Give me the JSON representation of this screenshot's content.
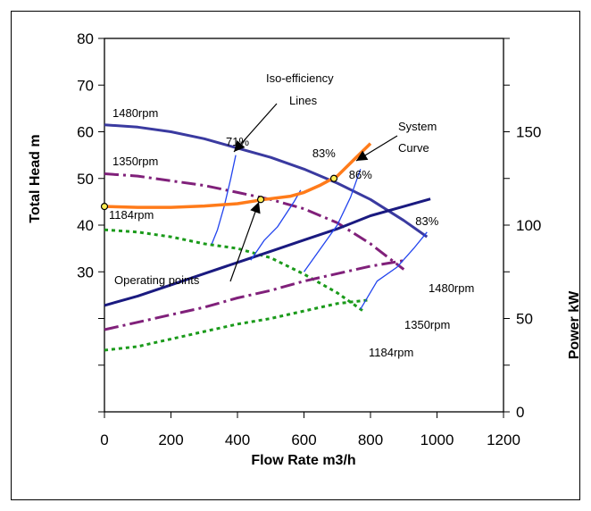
{
  "chart_data": {
    "type": "line",
    "title": "",
    "xlabel": "Flow Rate m3/h",
    "ylabel": "Total Head m",
    "y2label": "Power kW",
    "xlim": [
      0,
      1200
    ],
    "ylim": [
      0,
      80
    ],
    "y2lim": [
      0,
      200
    ],
    "x_ticks": [
      0,
      200,
      400,
      600,
      800,
      1000,
      1200
    ],
    "y_ticks": [
      30,
      40,
      50,
      60,
      70,
      80
    ],
    "y2_ticks": [
      0,
      50,
      100,
      150
    ],
    "grid": false,
    "legend": "none",
    "head_curves": [
      {
        "label": "1480rpm",
        "color": "#3a3aa0",
        "dash": "solid",
        "x": [
          0,
          100,
          200,
          300,
          400,
          500,
          600,
          700,
          800,
          900,
          970
        ],
        "y": [
          61.5,
          61,
          60,
          58.5,
          56.5,
          54.5,
          52,
          49,
          45.5,
          41,
          37.5
        ]
      },
      {
        "label": "1350rpm",
        "color": "#80207a",
        "dash": "dashdot",
        "x": [
          0,
          100,
          200,
          300,
          400,
          500,
          600,
          700,
          800,
          900
        ],
        "y": [
          51,
          50.5,
          49.5,
          48.5,
          47,
          45.5,
          43.5,
          40.5,
          36,
          30.5
        ]
      },
      {
        "label": "1184rpm",
        "color": "#1a9a1a",
        "dash": "dotted",
        "x": [
          0,
          100,
          200,
          300,
          400,
          500,
          600,
          700,
          780
        ],
        "y": [
          39,
          38.5,
          37.5,
          36,
          35,
          33,
          29.5,
          25.5,
          21.5
        ]
      }
    ],
    "power_curves": [
      {
        "label": "1480rpm",
        "color": "#1a1a80",
        "dash": "solid",
        "x": [
          0,
          100,
          200,
          300,
          400,
          500,
          600,
          700,
          800,
          900,
          980
        ],
        "y": [
          57,
          62,
          68,
          74,
          80,
          86,
          92,
          98,
          105,
          110,
          114
        ]
      },
      {
        "label": "1350rpm",
        "color": "#80207a",
        "dash": "dashdot",
        "x": [
          0,
          100,
          200,
          300,
          400,
          500,
          600,
          700,
          800,
          900
        ],
        "y": [
          44,
          48,
          52,
          56,
          61,
          65,
          70,
          74,
          78,
          81
        ]
      },
      {
        "label": "1184rpm",
        "color": "#1a9a1a",
        "dash": "dotted",
        "x": [
          0,
          100,
          200,
          300,
          400,
          500,
          600,
          700,
          800
        ],
        "y": [
          33,
          35,
          39,
          43,
          47,
          50,
          54,
          58,
          60
        ]
      }
    ],
    "system_curve": {
      "label": "System Curve",
      "label_line1": "System",
      "label_line2": "Curve",
      "color": "#ff7b1a",
      "x": [
        0,
        100,
        200,
        300,
        400,
        480,
        560,
        600,
        650,
        700,
        750,
        800
      ],
      "y": [
        44,
        43.8,
        43.8,
        44.1,
        44.6,
        45.5,
        46.2,
        47,
        48.6,
        50.5,
        54,
        57.5
      ]
    },
    "iso_efficiency": {
      "label_line1": "Iso-efficiency",
      "label_line2": "Lines",
      "color": "#2244ee",
      "lines": [
        {
          "x": [
            323,
            340,
            360,
            380,
            395
          ],
          "y": [
            36,
            39,
            44,
            50,
            55
          ]
        },
        {
          "x": [
            440,
            480,
            520,
            570,
            590
          ],
          "y": [
            32.5,
            36.7,
            39.6,
            45,
            47.5
          ]
        },
        {
          "x": [
            600,
            640,
            700,
            740,
            770
          ],
          "y": [
            30,
            34,
            40,
            46,
            52
          ]
        },
        {
          "x": [
            770,
            820,
            880,
            930,
            970
          ],
          "y": [
            22,
            28,
            31,
            35,
            38.5
          ]
        }
      ],
      "labels": [
        {
          "text": "71%",
          "x": 400,
          "y": 57
        },
        {
          "text": "83%",
          "x": 660,
          "y": 54.5
        },
        {
          "text": "86%",
          "x": 770,
          "y": 50
        },
        {
          "text": "83%",
          "x": 970,
          "y": 40
        }
      ]
    },
    "operating_points": {
      "label": "Operating points",
      "points": [
        {
          "x": 0,
          "y": 44
        },
        {
          "x": 470,
          "y": 45.5
        },
        {
          "x": 690,
          "y": 50
        }
      ]
    },
    "annotations": {
      "head_1480": "1480rpm",
      "head_1350": "1350rpm",
      "head_1184": "1184rpm",
      "power_1480": "1480rpm",
      "power_1350": "1350rpm",
      "power_1184": "1184rpm"
    }
  }
}
